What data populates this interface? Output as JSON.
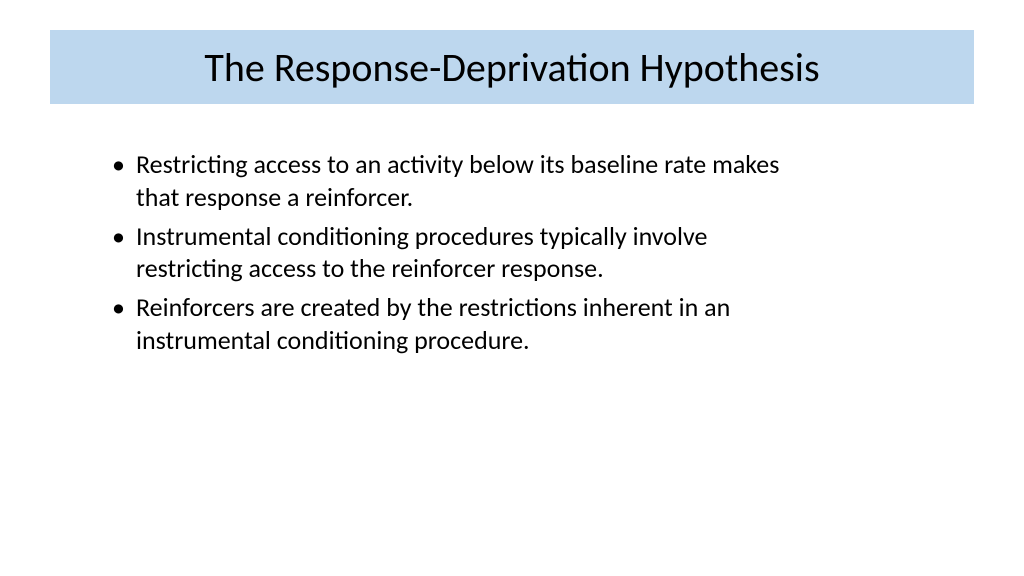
{
  "slide": {
    "title": "The Response-Deprivation Hypothesis",
    "title_bar_color": "#bdd7ee",
    "background_color": "#ffffff",
    "title_fontsize": 40,
    "body_fontsize": 26,
    "text_color": "#000000",
    "bullets": [
      "Restricting access to an activity below its baseline rate makes that response a reinforcer.",
      "Instrumental conditioning procedures typically involve restricting access to the reinforcer response.",
      "Reinforcers are created by the restrictions inherent in an instrumental conditioning procedure."
    ]
  }
}
